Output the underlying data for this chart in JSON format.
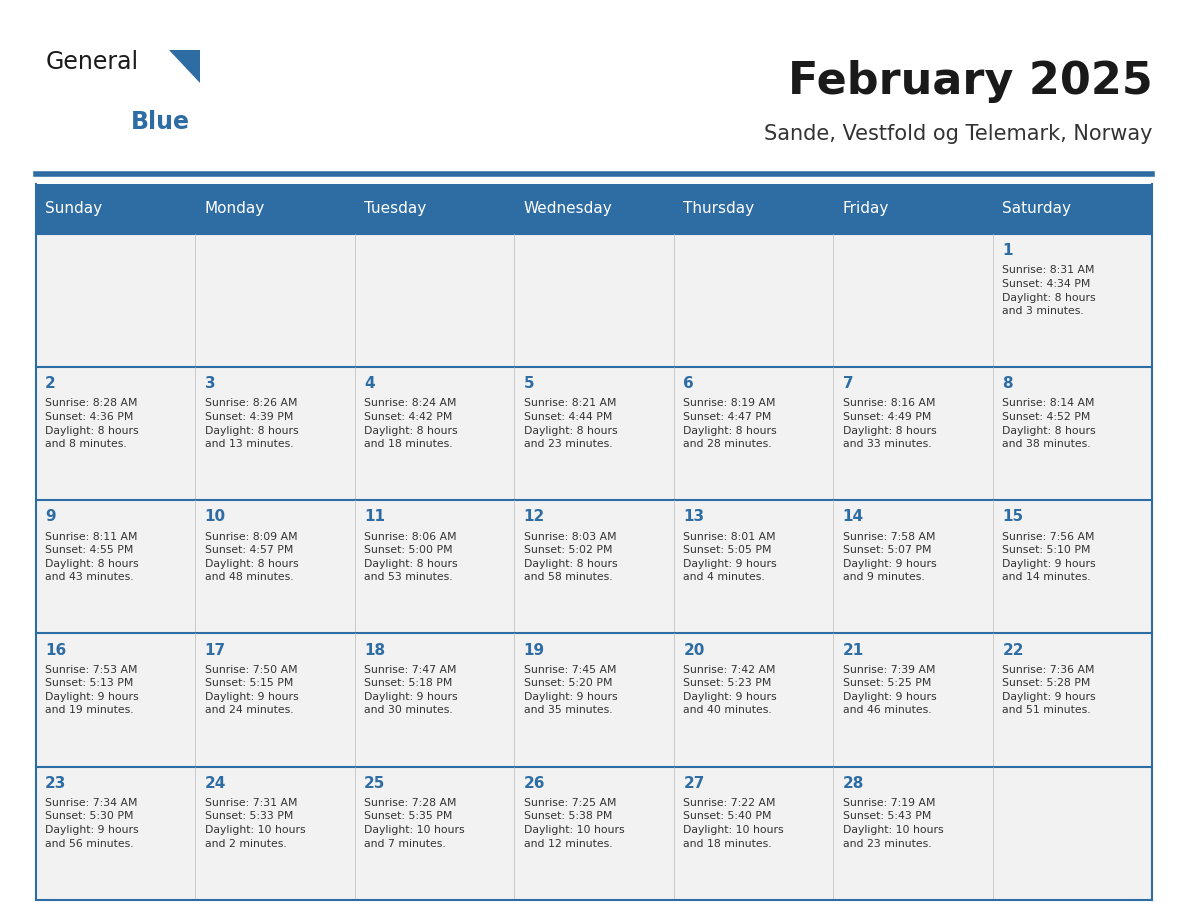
{
  "title": "February 2025",
  "subtitle": "Sande, Vestfold og Telemark, Norway",
  "days_of_week": [
    "Sunday",
    "Monday",
    "Tuesday",
    "Wednesday",
    "Thursday",
    "Friday",
    "Saturday"
  ],
  "header_bg": "#2E6DA4",
  "header_text": "#FFFFFF",
  "cell_bg_light": "#F2F2F2",
  "line_color": "#2E6DA4",
  "text_color": "#333333",
  "day_number_color": "#2E6DA4",
  "title_color": "#1a1a1a",
  "subtitle_color": "#333333",
  "logo_general_color": "#1a1a1a",
  "logo_blue_color": "#2E6DA4",
  "weeks": [
    [
      {
        "day": null,
        "info": null
      },
      {
        "day": null,
        "info": null
      },
      {
        "day": null,
        "info": null
      },
      {
        "day": null,
        "info": null
      },
      {
        "day": null,
        "info": null
      },
      {
        "day": null,
        "info": null
      },
      {
        "day": 1,
        "info": "Sunrise: 8:31 AM\nSunset: 4:34 PM\nDaylight: 8 hours\nand 3 minutes."
      }
    ],
    [
      {
        "day": 2,
        "info": "Sunrise: 8:28 AM\nSunset: 4:36 PM\nDaylight: 8 hours\nand 8 minutes."
      },
      {
        "day": 3,
        "info": "Sunrise: 8:26 AM\nSunset: 4:39 PM\nDaylight: 8 hours\nand 13 minutes."
      },
      {
        "day": 4,
        "info": "Sunrise: 8:24 AM\nSunset: 4:42 PM\nDaylight: 8 hours\nand 18 minutes."
      },
      {
        "day": 5,
        "info": "Sunrise: 8:21 AM\nSunset: 4:44 PM\nDaylight: 8 hours\nand 23 minutes."
      },
      {
        "day": 6,
        "info": "Sunrise: 8:19 AM\nSunset: 4:47 PM\nDaylight: 8 hours\nand 28 minutes."
      },
      {
        "day": 7,
        "info": "Sunrise: 8:16 AM\nSunset: 4:49 PM\nDaylight: 8 hours\nand 33 minutes."
      },
      {
        "day": 8,
        "info": "Sunrise: 8:14 AM\nSunset: 4:52 PM\nDaylight: 8 hours\nand 38 minutes."
      }
    ],
    [
      {
        "day": 9,
        "info": "Sunrise: 8:11 AM\nSunset: 4:55 PM\nDaylight: 8 hours\nand 43 minutes."
      },
      {
        "day": 10,
        "info": "Sunrise: 8:09 AM\nSunset: 4:57 PM\nDaylight: 8 hours\nand 48 minutes."
      },
      {
        "day": 11,
        "info": "Sunrise: 8:06 AM\nSunset: 5:00 PM\nDaylight: 8 hours\nand 53 minutes."
      },
      {
        "day": 12,
        "info": "Sunrise: 8:03 AM\nSunset: 5:02 PM\nDaylight: 8 hours\nand 58 minutes."
      },
      {
        "day": 13,
        "info": "Sunrise: 8:01 AM\nSunset: 5:05 PM\nDaylight: 9 hours\nand 4 minutes."
      },
      {
        "day": 14,
        "info": "Sunrise: 7:58 AM\nSunset: 5:07 PM\nDaylight: 9 hours\nand 9 minutes."
      },
      {
        "day": 15,
        "info": "Sunrise: 7:56 AM\nSunset: 5:10 PM\nDaylight: 9 hours\nand 14 minutes."
      }
    ],
    [
      {
        "day": 16,
        "info": "Sunrise: 7:53 AM\nSunset: 5:13 PM\nDaylight: 9 hours\nand 19 minutes."
      },
      {
        "day": 17,
        "info": "Sunrise: 7:50 AM\nSunset: 5:15 PM\nDaylight: 9 hours\nand 24 minutes."
      },
      {
        "day": 18,
        "info": "Sunrise: 7:47 AM\nSunset: 5:18 PM\nDaylight: 9 hours\nand 30 minutes."
      },
      {
        "day": 19,
        "info": "Sunrise: 7:45 AM\nSunset: 5:20 PM\nDaylight: 9 hours\nand 35 minutes."
      },
      {
        "day": 20,
        "info": "Sunrise: 7:42 AM\nSunset: 5:23 PM\nDaylight: 9 hours\nand 40 minutes."
      },
      {
        "day": 21,
        "info": "Sunrise: 7:39 AM\nSunset: 5:25 PM\nDaylight: 9 hours\nand 46 minutes."
      },
      {
        "day": 22,
        "info": "Sunrise: 7:36 AM\nSunset: 5:28 PM\nDaylight: 9 hours\nand 51 minutes."
      }
    ],
    [
      {
        "day": 23,
        "info": "Sunrise: 7:34 AM\nSunset: 5:30 PM\nDaylight: 9 hours\nand 56 minutes."
      },
      {
        "day": 24,
        "info": "Sunrise: 7:31 AM\nSunset: 5:33 PM\nDaylight: 10 hours\nand 2 minutes."
      },
      {
        "day": 25,
        "info": "Sunrise: 7:28 AM\nSunset: 5:35 PM\nDaylight: 10 hours\nand 7 minutes."
      },
      {
        "day": 26,
        "info": "Sunrise: 7:25 AM\nSunset: 5:38 PM\nDaylight: 10 hours\nand 12 minutes."
      },
      {
        "day": 27,
        "info": "Sunrise: 7:22 AM\nSunset: 5:40 PM\nDaylight: 10 hours\nand 18 minutes."
      },
      {
        "day": 28,
        "info": "Sunrise: 7:19 AM\nSunset: 5:43 PM\nDaylight: 10 hours\nand 23 minutes."
      },
      {
        "day": null,
        "info": null
      }
    ]
  ]
}
